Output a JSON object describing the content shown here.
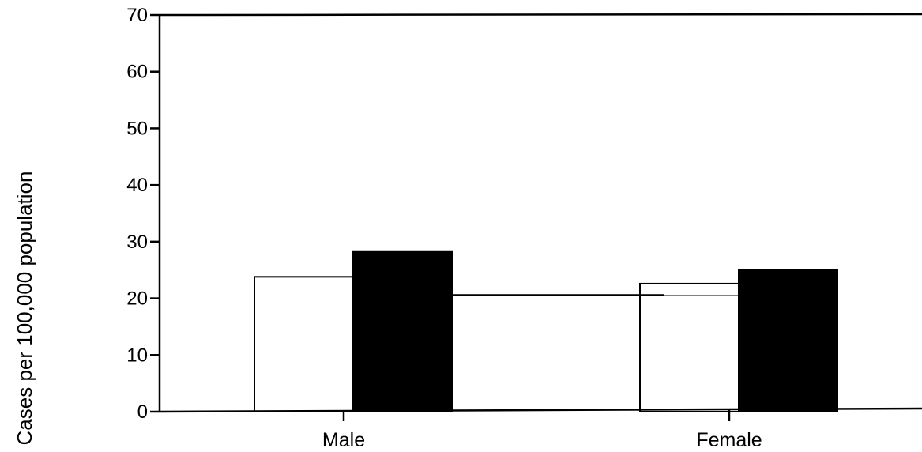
{
  "chart_data": {
    "type": "bar",
    "title": "",
    "xlabel": "",
    "ylabel": "Cases per 100,000 population",
    "ylim": [
      0,
      70
    ],
    "yticks": [
      "0",
      "10",
      "20",
      "30",
      "40",
      "50",
      "60",
      "70"
    ],
    "categories": [
      "Male",
      "Female"
    ],
    "series": [
      {
        "values": [
          23.8,
          22.6
        ],
        "color": "#ffffff"
      },
      {
        "values": [
          28.2,
          25.0
        ],
        "color": "#000000"
      }
    ],
    "reference_line": {
      "value": 20.6
    },
    "grid": false,
    "legend": "none"
  }
}
